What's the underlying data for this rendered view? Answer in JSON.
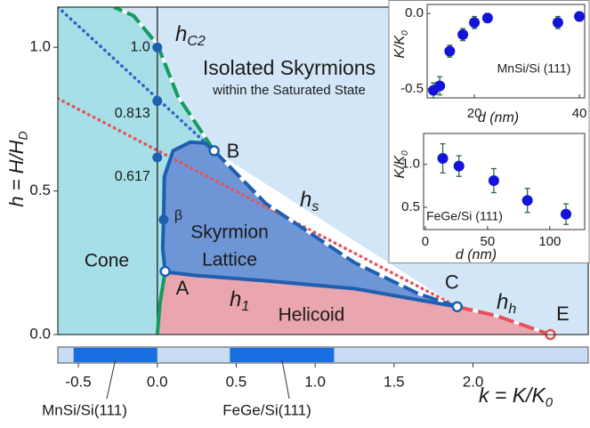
{
  "chart_data": [
    {
      "type": "phase-diagram",
      "xlabel": {
        "text": "k = K/K",
        "sub": "0"
      },
      "ylabel": {
        "text": "h = H/H",
        "sub": "D"
      },
      "xlim": [
        -0.63,
        2.73
      ],
      "ylim": [
        0,
        1.14
      ],
      "xticks": [
        -0.5,
        {
          "value": 0,
          "label": "0.0"
        },
        0.5,
        {
          "value": 1,
          "label": "1.0"
        },
        1.5,
        {
          "value": 2,
          "label": "2.0"
        }
      ],
      "yticks": [
        {
          "value": 0,
          "label": "0.0"
        },
        0.5,
        {
          "value": 1,
          "label": "1.0"
        }
      ],
      "regions": [
        {
          "labels": [
            "Isolated Skyrmions",
            "within the Saturated State"
          ],
          "color": "#d3e6f7",
          "x": [
            -0.275,
            2.73,
            2.73,
            2.49,
            1.9,
            0.36,
            0.13,
            0,
            -0.15
          ],
          "y": [
            1.14,
            1.14,
            0,
            0,
            0.097,
            0.64,
            0.83,
            1.01,
            1.11
          ]
        },
        {
          "labels": [
            "Cone"
          ],
          "color": "#a6dfe8",
          "x": [
            -0.63,
            -0.275,
            -0.15,
            0,
            0.13,
            0.36,
            0.05,
            0.017,
            0,
            -0.63
          ],
          "y": [
            1.14,
            1.14,
            1.11,
            1.01,
            0.83,
            0.64,
            0.22,
            0.11,
            0,
            0
          ]
        },
        {
          "labels": [
            "Helicoid"
          ],
          "color": "#eaa6ae",
          "x": [
            0.05,
            0.24,
            0.69,
            1.25,
            1.9,
            2.15,
            2.49,
            0,
            0.017
          ],
          "y": [
            0.218,
            0.206,
            0.187,
            0.16,
            0.097,
            0.065,
            0,
            0,
            0.11
          ]
        },
        {
          "labels": [
            "Skyrmion",
            "Lattice"
          ],
          "color": "#6e96d6",
          "x": [
            0.05,
            0.034,
            0.04,
            0.045,
            0.1,
            0.21,
            0.3,
            0.36,
            0.69,
            1.25,
            1.65,
            1.9,
            1.25,
            0.69,
            0.24
          ],
          "y": [
            0.22,
            0.3,
            0.4,
            0.55,
            0.64,
            0.67,
            0.667,
            0.64,
            0.455,
            0.25,
            0.143,
            0.097,
            0.16,
            0.187,
            0.206
          ]
        }
      ],
      "lines": [
        {
          "color": "#2f63c4",
          "style": "dotted",
          "x": [
            -0.63,
            0.36
          ],
          "y": [
            1.14,
            0.64
          ]
        },
        {
          "color": "#e8505a",
          "style": "dotted",
          "x": [
            -0.63,
            1.9
          ],
          "y": [
            0.822,
            0.097
          ]
        },
        {
          "color": "#222222",
          "style": "thin",
          "x": [
            0,
            0
          ],
          "y": [
            0,
            1.14
          ]
        },
        {
          "color": "#169a5e",
          "style": "solid",
          "x": [
            0.05,
            0.017,
            0
          ],
          "y": [
            0.22,
            0.11,
            0
          ]
        },
        {
          "color": "#169a5e",
          "style": "dashed",
          "x": [
            0.36,
            0.13,
            0,
            -0.15,
            -0.275
          ],
          "y": [
            0.64,
            0.83,
            1.01,
            1.11,
            1.14
          ],
          "label": {
            "text": "h",
            "sub": "C2"
          }
        },
        {
          "color": "#1f5fb0",
          "style": "solid",
          "x": [
            0.05,
            0.034,
            0.04,
            0.045,
            0.1,
            0.21,
            0.3,
            0.36
          ],
          "y": [
            0.22,
            0.3,
            0.4,
            0.55,
            0.64,
            0.67,
            0.667,
            0.64
          ]
        },
        {
          "color": "#1f5fb0",
          "style": "dashed",
          "x": [
            0.36,
            0.69,
            1.25,
            1.65,
            1.9
          ],
          "y": [
            0.64,
            0.455,
            0.25,
            0.143,
            0.097
          ],
          "label": {
            "text": "h",
            "sub": "s"
          }
        },
        {
          "color": "#1f5fb0",
          "style": "solid",
          "x": [
            0.05,
            0.24,
            0.69,
            1.25,
            1.9
          ],
          "y": [
            0.218,
            0.206,
            0.187,
            0.16,
            0.097
          ],
          "label": {
            "text": "h",
            "sub": "1"
          }
        },
        {
          "color": "#e8505a",
          "style": "dashed",
          "x": [
            1.9,
            2.15,
            2.49
          ],
          "y": [
            0.097,
            0.065,
            0
          ],
          "label": {
            "text": "h",
            "sub": "h"
          }
        }
      ],
      "points": [
        {
          "label": "1.0",
          "x": 0,
          "y": 1.0,
          "style": "filled",
          "color": "#1f5fb0"
        },
        {
          "label": "0.813",
          "x": 0,
          "y": 0.813,
          "style": "filled",
          "color": "#1f5fb0"
        },
        {
          "label": "0.617",
          "x": 0,
          "y": 0.617,
          "style": "filled",
          "color": "#1f5fb0"
        },
        {
          "label": "β",
          "x": 0.04,
          "y": 0.4,
          "style": "filled",
          "color": "#1f5fb0"
        },
        {
          "label": "A",
          "x": 0.05,
          "y": 0.22,
          "style": "open",
          "color": "#1f5fb0"
        },
        {
          "label": "B",
          "x": 0.36,
          "y": 0.64,
          "style": "open",
          "color": "#1f5fb0"
        },
        {
          "label": "C",
          "x": 1.9,
          "y": 0.097,
          "style": "open",
          "color": "#1f5fb0"
        },
        {
          "label": "E",
          "x": 2.49,
          "y": 0,
          "style": "open",
          "color": "#e8505a"
        }
      ],
      "band_color": "#c8dcf4",
      "bands": [
        {
          "label": "MnSi/Si(111)",
          "range": [
            -0.53,
            0
          ],
          "color": "#1a6fe0"
        },
        {
          "label": "FeGe/Si(111)",
          "range": [
            0.46,
            1.12
          ],
          "color": "#1a6fe0"
        }
      ]
    },
    {
      "type": "scatter",
      "annotation": "MnSi/Si (111)",
      "xlabel": "d (nm)",
      "ylabel": {
        "text": "K/K",
        "sub": "0"
      },
      "x": [
        12.2,
        13.4,
        15.3,
        17.8,
        20,
        22.5,
        35.9,
        40
      ],
      "values": [
        -0.51,
        -0.48,
        -0.25,
        -0.14,
        -0.06,
        -0.03,
        -0.06,
        -0.02
      ],
      "errors": [
        0.05,
        0.06,
        0.04,
        0.04,
        0.04,
        0.03,
        0.04,
        0.03
      ],
      "color": "#1414d8",
      "error_color": "#2e6b3a",
      "xlim": [
        11,
        41
      ],
      "ylim": [
        -0.56,
        0.06
      ],
      "xticks": [
        20,
        40
      ],
      "yticks": [
        -0.5,
        {
          "value": 0,
          "label": "0.0"
        }
      ]
    },
    {
      "type": "scatter",
      "annotation": "FeGe/Si (111)",
      "xlabel": "d (nm)",
      "ylabel": {
        "text": "K/K",
        "sub": "0"
      },
      "x": [
        14,
        27,
        55,
        82,
        113
      ],
      "values": [
        1.07,
        0.98,
        0.81,
        0.58,
        0.42
      ],
      "errors": [
        0.17,
        0.12,
        0.14,
        0.14,
        0.12
      ],
      "color": "#1414d8",
      "error_color": "#2e6b3a",
      "xlim": [
        -1.4,
        128
      ],
      "ylim": [
        0.24,
        1.36
      ],
      "xticks": [
        0,
        50,
        100
      ],
      "yticks": [
        0.5,
        {
          "value": 1,
          "label": "1.0"
        }
      ]
    }
  ]
}
